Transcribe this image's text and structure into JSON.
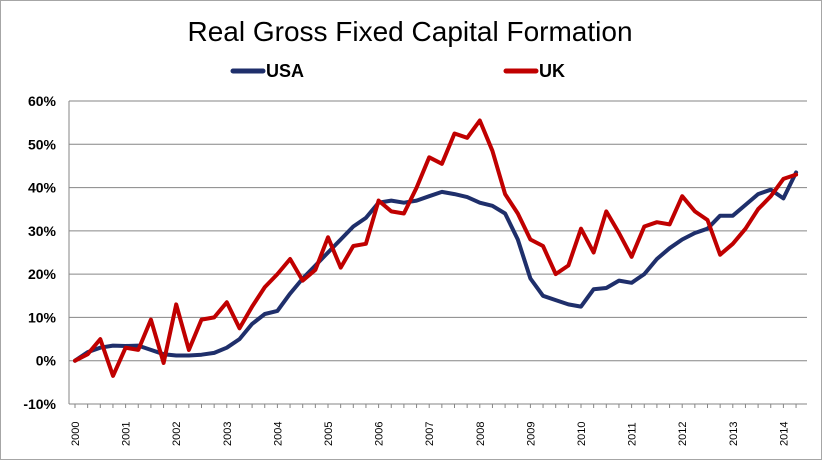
{
  "chart_data": {
    "type": "line",
    "title": "Real Gross Fixed Capital Formation",
    "xlabel": "",
    "ylabel": "",
    "ylim": [
      -10,
      60
    ],
    "yticks": [
      60,
      50,
      40,
      30,
      20,
      10,
      0,
      -10
    ],
    "ytick_labels": [
      "60%",
      "50%",
      "40%",
      "30%",
      "20%",
      "10%",
      "0%",
      "-10%"
    ],
    "x_start_year": 2000,
    "points_per_year": 4,
    "year_labels": [
      "2000",
      "2001",
      "2002",
      "2003",
      "2004",
      "2005",
      "2006",
      "2007",
      "2008",
      "2009",
      "2010",
      "2011",
      "2012",
      "2013",
      "2014"
    ],
    "grid": true,
    "legend_position": "top-center",
    "series": [
      {
        "name": "USA",
        "color": "#1f2f6b",
        "values": [
          0,
          2,
          3,
          3.5,
          3.4,
          3.5,
          2.5,
          1.5,
          1.2,
          1.2,
          1.4,
          1.8,
          3,
          5,
          8.5,
          10.8,
          11.5,
          15.5,
          19,
          22,
          25,
          28,
          31,
          33,
          36.5,
          37,
          36.5,
          37,
          38,
          39,
          38.5,
          37.8,
          36.5,
          35.8,
          34,
          28,
          19,
          15,
          14,
          13,
          12.5,
          16.5,
          16.8,
          18.5,
          18,
          20,
          23.5,
          26,
          28,
          29.5,
          30.5,
          33.5,
          33.5,
          36,
          38.5,
          39.5,
          37.5,
          43.5
        ]
      },
      {
        "name": "UK",
        "color": "#c00000",
        "values": [
          0,
          1.5,
          5,
          -3.5,
          3,
          2.5,
          9.5,
          -0.5,
          13,
          2.5,
          9.5,
          10,
          13.5,
          7.5,
          12.5,
          17,
          20,
          23.5,
          18.5,
          21,
          28.5,
          21.5,
          26.5,
          27,
          37,
          34.5,
          34,
          40,
          47,
          45.5,
          52.5,
          51.5,
          55.5,
          48.5,
          38.5,
          34,
          28,
          26.5,
          20,
          22,
          30.5,
          25,
          34.5,
          29.5,
          24,
          31,
          32,
          31.5,
          38,
          34.5,
          32.5,
          24.5,
          27,
          30.5,
          35,
          38,
          42,
          43
        ]
      }
    ]
  }
}
